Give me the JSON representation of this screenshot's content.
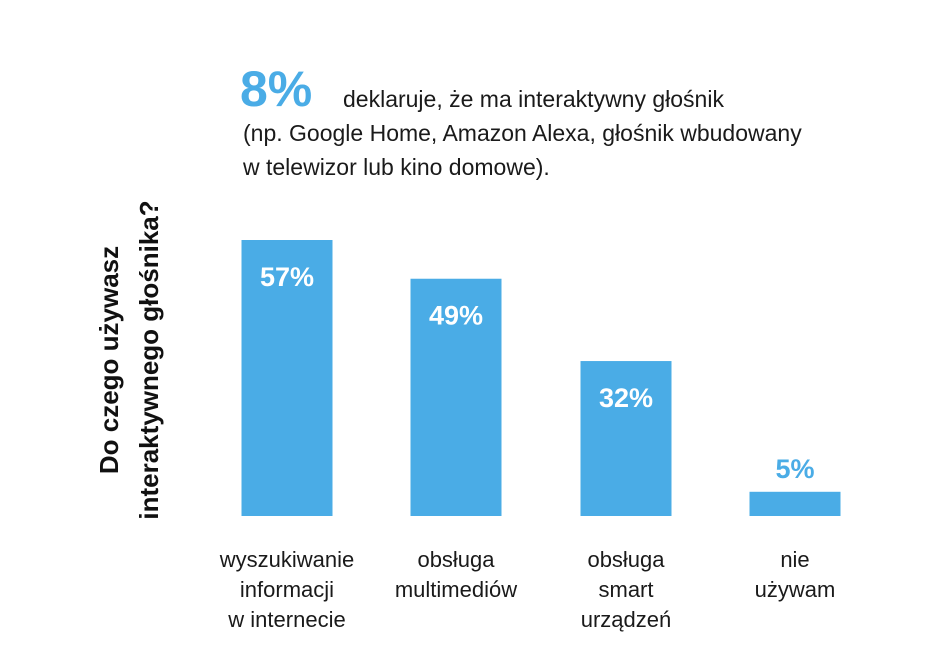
{
  "headline": {
    "big": "8%",
    "lines": [
      "deklaruje, że ma interaktywny głośnik",
      "(np. Google Home, Amazon Alexa, głośnik wbudowany",
      "w telewizor lub kino domowe)."
    ]
  },
  "colors": {
    "accent": "#4AACE6",
    "text": "#1a1a1a",
    "label_inside": "#ffffff"
  },
  "chart_data": {
    "type": "bar",
    "title": "",
    "xlabel": "",
    "ylabel_lines": [
      "Do czego używasz",
      "interaktywnego głośnika?"
    ],
    "categories": [
      [
        "wyszukiwanie",
        "informacji",
        "w internecie"
      ],
      [
        "obsługa",
        "multimediów"
      ],
      [
        "obsługa",
        "smart",
        "urządzeń"
      ],
      [
        "nie",
        "używam"
      ]
    ],
    "values": [
      57,
      49,
      32,
      5
    ],
    "data_labels": [
      "57%",
      "49%",
      "32%",
      "5%"
    ],
    "ylim": [
      0,
      57
    ],
    "grid": false,
    "legend": "none"
  }
}
